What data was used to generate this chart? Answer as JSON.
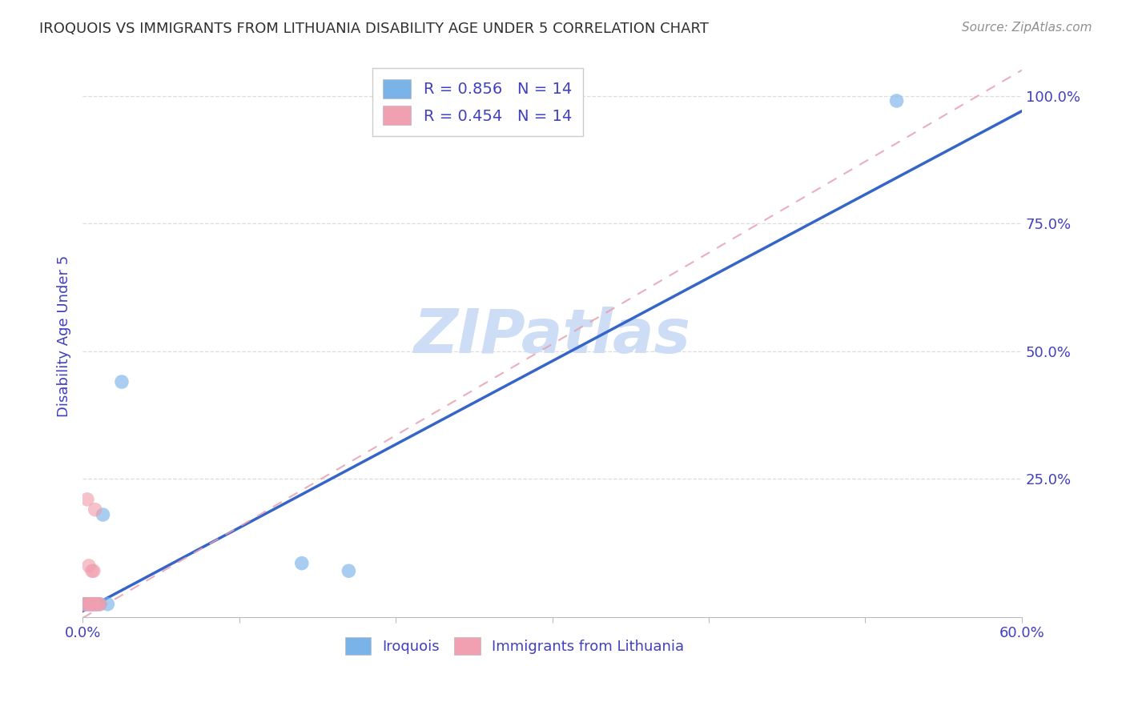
{
  "title": "IROQUOIS VS IMMIGRANTS FROM LITHUANIA DISABILITY AGE UNDER 5 CORRELATION CHART",
  "source": "Source: ZipAtlas.com",
  "ylabel": "Disability Age Under 5",
  "xlim": [
    0.0,
    0.6
  ],
  "ylim": [
    -0.02,
    1.08
  ],
  "xticks": [
    0.0,
    0.1,
    0.2,
    0.3,
    0.4,
    0.5,
    0.6
  ],
  "xticklabels": [
    "0.0%",
    "",
    "",
    "",
    "",
    "",
    "60.0%"
  ],
  "ytick_positions": [
    0.25,
    0.5,
    0.75,
    1.0
  ],
  "yticklabels": [
    "25.0%",
    "50.0%",
    "75.0%",
    "100.0%"
  ],
  "iroquois_x": [
    0.001,
    0.002,
    0.003,
    0.004,
    0.005,
    0.006,
    0.007,
    0.008,
    0.009,
    0.011,
    0.013,
    0.016,
    0.025,
    0.14,
    0.17,
    0.52
  ],
  "iroquois_y": [
    0.005,
    0.005,
    0.005,
    0.005,
    0.005,
    0.005,
    0.005,
    0.005,
    0.005,
    0.005,
    0.18,
    0.005,
    0.44,
    0.085,
    0.07,
    0.99
  ],
  "lithuania_x": [
    0.001,
    0.002,
    0.003,
    0.004,
    0.005,
    0.005,
    0.006,
    0.006,
    0.007,
    0.007,
    0.008,
    0.009,
    0.01,
    0.011
  ],
  "lithuania_y": [
    0.005,
    0.005,
    0.21,
    0.08,
    0.005,
    0.005,
    0.005,
    0.07,
    0.005,
    0.07,
    0.19,
    0.005,
    0.005,
    0.005
  ],
  "blue_line_x": [
    -0.01,
    0.6
  ],
  "blue_line_y": [
    -0.025,
    0.97
  ],
  "pink_line_x": [
    -0.01,
    0.6
  ],
  "pink_line_y": [
    -0.04,
    1.05
  ],
  "iroquois_color": "#7ab3e8",
  "lithuania_color": "#f0a0b0",
  "blue_line_color": "#3565c8",
  "pink_line_color": "#e8a0b0",
  "watermark_color": "#ccddf5",
  "background_color": "#ffffff",
  "grid_color": "#dddddd",
  "title_color": "#303030",
  "axis_label_color": "#4040c0",
  "tick_color": "#4040c0"
}
